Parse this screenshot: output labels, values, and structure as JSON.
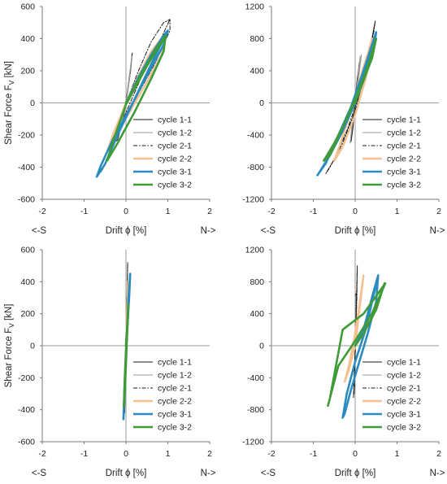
{
  "legend_entries": [
    "cycle 1-1",
    "cycle 1-2",
    "cycle 2-1",
    "cycle 2-2",
    "cycle 3-1",
    "cycle 3-2"
  ],
  "series_styles": {
    "cycle 1-1": {
      "color": "#1a1a1a",
      "width": 1.1,
      "dash": ""
    },
    "cycle 1-2": {
      "color": "#9a9a9a",
      "width": 1.1,
      "dash": ""
    },
    "cycle 2-1": {
      "color": "#1a1a1a",
      "width": 1.0,
      "dash": "5,2,1.5,2"
    },
    "cycle 2-2": {
      "color": "#f5c08f",
      "width": 2.4,
      "dash": ""
    },
    "cycle 3-1": {
      "color": "#2a8bbf",
      "width": 2.6,
      "dash": ""
    },
    "cycle 3-2": {
      "color": "#3f9b37",
      "width": 2.6,
      "dash": ""
    }
  },
  "chart_data": [
    {
      "type": "line",
      "position": "top-left",
      "xlabel": "Drift ϕ [%]",
      "ylabel": "Shear Force F",
      "ylabel_sub": "V",
      "ylabel_unit": " [kN]",
      "left_label": "<-S",
      "right_label": "N->",
      "xlim": [
        -2,
        2
      ],
      "ylim": [
        -600,
        600
      ],
      "xticks": [
        "-2",
        "-1",
        "0",
        "1",
        "2"
      ],
      "yticks": [
        "-600",
        "-400",
        "-200",
        "0",
        "200",
        "400",
        "600"
      ],
      "series": [
        {
          "name": "cycle 1-1",
          "x": [
            0,
            0.1,
            0.15,
            0.08,
            -0.05,
            -0.2,
            -0.25,
            -0.1,
            0,
            0.1,
            0.15
          ],
          "y": [
            0,
            200,
            310,
            150,
            -80,
            -230,
            -240,
            -120,
            0,
            180,
            310
          ]
        },
        {
          "name": "cycle 1-2",
          "x": [
            0,
            0.08,
            0.14,
            0.05,
            -0.1,
            -0.22,
            -0.1,
            0,
            0.1
          ],
          "y": [
            0,
            150,
            290,
            80,
            -120,
            -230,
            -130,
            0,
            180
          ]
        },
        {
          "name": "cycle 2-1",
          "x": [
            0,
            0.3,
            0.6,
            0.9,
            1.05,
            1.05,
            0.7,
            0.3,
            -0.1,
            -0.4,
            -0.6,
            -0.55,
            -0.3,
            0,
            0.4,
            0.8,
            1.05
          ],
          "y": [
            0,
            200,
            380,
            500,
            520,
            450,
            250,
            60,
            -150,
            -320,
            -430,
            -410,
            -260,
            -60,
            180,
            380,
            520
          ]
        },
        {
          "name": "cycle 2-2",
          "x": [
            0,
            0.3,
            0.6,
            0.9,
            0.85,
            0.5,
            0.1,
            -0.3,
            -0.45,
            -0.3,
            0,
            0.5,
            0.9
          ],
          "y": [
            0,
            170,
            320,
            420,
            300,
            130,
            -50,
            -230,
            -300,
            -190,
            0,
            240,
            420
          ]
        },
        {
          "name": "cycle 3-1",
          "x": [
            0,
            0.3,
            0.6,
            0.9,
            1.0,
            0.9,
            0.5,
            0.1,
            -0.3,
            -0.6,
            -0.7,
            -0.5,
            -0.2,
            0.2,
            0.6,
            1.0
          ],
          "y": [
            0,
            160,
            300,
            420,
            450,
            360,
            170,
            -30,
            -220,
            -390,
            -460,
            -380,
            -200,
            20,
            240,
            450
          ]
        },
        {
          "name": "cycle 3-2",
          "x": [
            0,
            0.35,
            0.7,
            0.95,
            0.9,
            0.6,
            0.2,
            -0.2,
            -0.45,
            -0.3,
            0,
            0.5,
            0.95
          ],
          "y": [
            0,
            170,
            330,
            420,
            320,
            150,
            -60,
            -250,
            -360,
            -230,
            -10,
            230,
            420
          ]
        }
      ]
    },
    {
      "type": "line",
      "position": "top-right",
      "xlabel": "Drift ϕ [%]",
      "ylabel": "",
      "left_label": "<-S",
      "right_label": "N->",
      "xlim": [
        -2,
        2
      ],
      "ylim": [
        -1200,
        1200
      ],
      "xticks": [
        "-2",
        "-1",
        "0",
        "1",
        "2"
      ],
      "yticks": [
        "-1200",
        "-800",
        "-400",
        "0",
        "400",
        "800",
        "1200"
      ],
      "series": [
        {
          "name": "cycle 1-1",
          "x": [
            0,
            0.05,
            0.12,
            0.05,
            -0.05,
            -0.1,
            -0.05,
            0,
            0.1
          ],
          "y": [
            0,
            250,
            550,
            300,
            -200,
            -480,
            -300,
            0,
            500
          ]
        },
        {
          "name": "cycle 1-2",
          "x": [
            0,
            0.08,
            0.15,
            0.05,
            -0.08,
            -0.12,
            0,
            0.12
          ],
          "y": [
            0,
            300,
            600,
            250,
            -300,
            -500,
            0,
            580
          ]
        },
        {
          "name": "cycle 2-1",
          "x": [
            0,
            0.2,
            0.4,
            0.48,
            0.45,
            0.3,
            0.1,
            -0.2,
            -0.5,
            -0.7,
            -0.6,
            -0.3,
            0,
            0.3,
            0.48
          ],
          "y": [
            0,
            350,
            800,
            1020,
            900,
            500,
            100,
            -350,
            -700,
            -880,
            -800,
            -500,
            -100,
            500,
            1020
          ]
        },
        {
          "name": "cycle 2-2",
          "x": [
            0,
            0.2,
            0.4,
            0.42,
            0.25,
            0,
            -0.3,
            -0.5,
            -0.35,
            -0.1,
            0.2,
            0.42
          ],
          "y": [
            0,
            400,
            800,
            700,
            300,
            -150,
            -550,
            -720,
            -500,
            -100,
            450,
            800
          ]
        },
        {
          "name": "cycle 3-1",
          "x": [
            0,
            0.2,
            0.4,
            0.5,
            0.45,
            0.25,
            0,
            -0.3,
            -0.6,
            -0.85,
            -0.9,
            -0.7,
            -0.4,
            -0.1,
            0.2,
            0.5
          ],
          "y": [
            0,
            350,
            720,
            880,
            700,
            350,
            0,
            -350,
            -650,
            -860,
            -900,
            -750,
            -400,
            -50,
            400,
            880
          ]
        },
        {
          "name": "cycle 3-2",
          "x": [
            0,
            0.2,
            0.45,
            0.5,
            0.4,
            0.1,
            -0.2,
            -0.5,
            -0.75,
            -0.6,
            -0.3,
            0,
            0.3,
            0.5
          ],
          "y": [
            0,
            300,
            700,
            800,
            550,
            150,
            -200,
            -500,
            -720,
            -650,
            -300,
            50,
            450,
            800
          ]
        }
      ]
    },
    {
      "type": "line",
      "position": "bottom-left",
      "xlabel": "Drift ϕ [%]",
      "ylabel": "Shear Force F",
      "ylabel_sub": "V",
      "ylabel_unit": " [kN]",
      "left_label": "<-S",
      "right_label": "N->",
      "xlim": [
        -2,
        2
      ],
      "ylim": [
        -600,
        600
      ],
      "xticks": [
        "-2",
        "-1",
        "0",
        "1",
        "2"
      ],
      "yticks": [
        "-600",
        "-400",
        "-200",
        "0",
        "200",
        "400",
        "600"
      ],
      "series": [
        {
          "name": "cycle 1-1",
          "x": [
            0,
            0.01,
            0.02,
            0.01,
            -0.01,
            -0.02,
            -0.01,
            0,
            0.02
          ],
          "y": [
            0,
            150,
            300,
            150,
            -150,
            -300,
            -150,
            0,
            300
          ]
        },
        {
          "name": "cycle 1-2",
          "x": [
            0,
            0.01,
            0.02,
            0,
            -0.02,
            -0.01,
            0.02
          ],
          "y": [
            0,
            120,
            280,
            0,
            -280,
            -100,
            280
          ]
        },
        {
          "name": "cycle 2-1",
          "x": [
            0,
            0.02,
            0.04,
            0.03,
            0.01,
            -0.01,
            -0.03,
            -0.02,
            0,
            0.04
          ],
          "y": [
            0,
            200,
            520,
            380,
            100,
            -150,
            -420,
            -300,
            0,
            520
          ]
        },
        {
          "name": "cycle 2-2",
          "x": [
            0,
            0.03,
            0.05,
            0.02,
            -0.02,
            -0.04,
            -0.01,
            0.05
          ],
          "y": [
            0,
            200,
            400,
            150,
            -200,
            -360,
            -100,
            400
          ]
        },
        {
          "name": "cycle 3-1",
          "x": [
            0,
            0.04,
            0.08,
            0.1,
            0.06,
            0.02,
            -0.03,
            -0.06,
            -0.04,
            0,
            0.05,
            0.1
          ],
          "y": [
            0,
            150,
            320,
            450,
            300,
            50,
            -220,
            -460,
            -350,
            -60,
            220,
            450
          ]
        },
        {
          "name": "cycle 3-2",
          "x": [
            0,
            0.03,
            0.06,
            0.05,
            0.01,
            -0.03,
            -0.05,
            -0.02,
            0.02,
            0.06
          ],
          "y": [
            0,
            120,
            260,
            200,
            20,
            -200,
            -380,
            -250,
            20,
            260
          ]
        }
      ]
    },
    {
      "type": "line",
      "position": "bottom-right",
      "xlabel": "Drift ϕ [%]",
      "ylabel": "",
      "left_label": "<-S",
      "right_label": "N->",
      "xlim": [
        -2,
        2
      ],
      "ylim": [
        -1200,
        1200
      ],
      "xticks": [
        "-2",
        "-1",
        "0",
        "1",
        "2"
      ],
      "yticks": [
        "-1200",
        "-800",
        "-400",
        "0",
        "400",
        "800",
        "1200"
      ],
      "series": [
        {
          "name": "cycle 1-1",
          "x": [
            0,
            0.01,
            0.02,
            0.01,
            -0.01,
            -0.02,
            0,
            0.02
          ],
          "y": [
            0,
            300,
            650,
            300,
            -300,
            -600,
            0,
            650
          ]
        },
        {
          "name": "cycle 1-2",
          "x": [
            0,
            0.01,
            0.02,
            0,
            -0.02,
            0,
            0.02
          ],
          "y": [
            0,
            300,
            620,
            0,
            -600,
            0,
            620
          ]
        },
        {
          "name": "cycle 2-1",
          "x": [
            0,
            0.02,
            0.05,
            0.04,
            0.01,
            -0.02,
            -0.04,
            -0.02,
            0.01,
            0.05
          ],
          "y": [
            0,
            350,
            1000,
            600,
            100,
            -300,
            -650,
            -500,
            0,
            1000
          ]
        },
        {
          "name": "cycle 2-2",
          "x": [
            0,
            0.05,
            0.15,
            0.2,
            0.1,
            -0.02,
            -0.15,
            -0.25,
            -0.15,
            0,
            0.2
          ],
          "y": [
            0,
            250,
            700,
            880,
            500,
            100,
            -250,
            -450,
            -300,
            0,
            880
          ]
        },
        {
          "name": "cycle 3-1",
          "x": [
            0,
            0.2,
            0.4,
            0.55,
            0.5,
            0.3,
            0.1,
            -0.1,
            -0.25,
            -0.3,
            -0.2,
            0,
            0.25,
            0.55
          ],
          "y": [
            0,
            200,
            600,
            880,
            550,
            150,
            -200,
            -550,
            -850,
            -900,
            -600,
            -200,
            200,
            880
          ]
        },
        {
          "name": "cycle 3-2",
          "x": [
            0,
            0.2,
            0.5,
            0.7,
            0.72,
            0.4,
            0,
            -0.4,
            -0.65,
            -0.6,
            -0.3,
            0.2,
            0.72
          ],
          "y": [
            0,
            150,
            450,
            780,
            780,
            400,
            60,
            -250,
            -750,
            -650,
            200,
            400,
            780
          ]
        }
      ]
    }
  ]
}
